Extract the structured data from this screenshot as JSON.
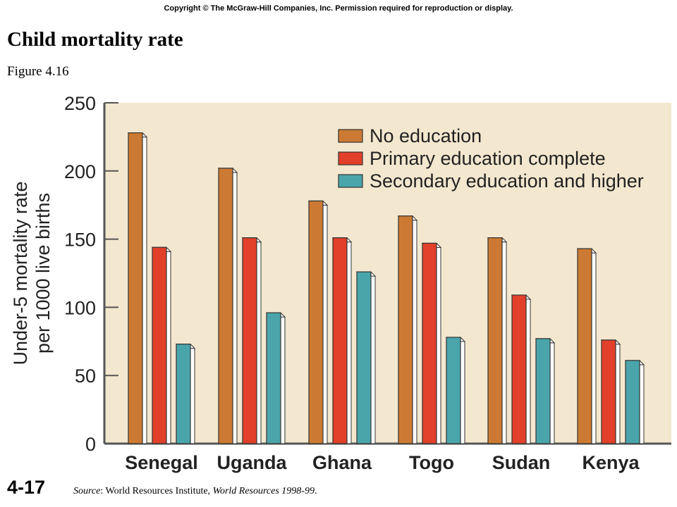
{
  "copyright": "Copyright © The McGraw-Hill Companies, Inc. Permission required for reproduction or display.",
  "title": "Child mortality rate",
  "subtitle": "Figure 4.16",
  "slide_number": "4-17",
  "source": {
    "label": "Source",
    "text_before": ": World Resources Institute, ",
    "work": "World Resources 1998-99",
    "text_after": "."
  },
  "colors": {
    "plot_background": "#f3e7cf",
    "no_education": "#cc7a33",
    "primary": "#e2402a",
    "secondary": "#4aa5ab"
  },
  "chart_data": {
    "type": "bar",
    "title": "",
    "ylabel_line1": "Under-5 mortality rate",
    "ylabel_line2": "per 1000 live births",
    "xlabel": "",
    "ylim": [
      0,
      250
    ],
    "yticks": [
      0,
      50,
      100,
      150,
      200,
      250
    ],
    "grid": false,
    "legend_position": "top-right",
    "categories": [
      "Senegal",
      "Uganda",
      "Ghana",
      "Togo",
      "Sudan",
      "Kenya"
    ],
    "series": [
      {
        "name": "No education",
        "color": "#cc7a33",
        "values": [
          228,
          202,
          178,
          167,
          151,
          143
        ]
      },
      {
        "name": "Primary education complete",
        "color": "#e2402a",
        "values": [
          144,
          151,
          151,
          147,
          109,
          76
        ]
      },
      {
        "name": "Secondary education and higher",
        "color": "#4aa5ab",
        "values": [
          73,
          96,
          126,
          78,
          77,
          61
        ]
      }
    ]
  }
}
